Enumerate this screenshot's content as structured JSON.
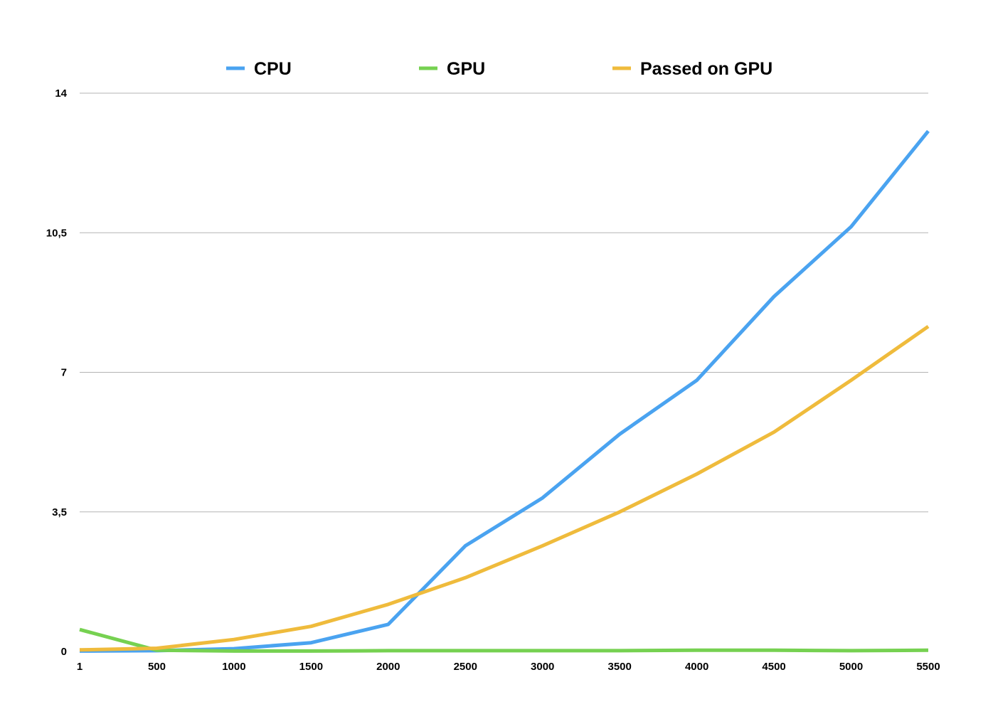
{
  "chart_data": {
    "type": "line",
    "title": "",
    "xlabel": "",
    "ylabel": "",
    "categories": [
      "1",
      "500",
      "1000",
      "1500",
      "2000",
      "2500",
      "3000",
      "3500",
      "4000",
      "4500",
      "5000",
      "5500"
    ],
    "y_ticks": [
      "0",
      "3,5",
      "7",
      "10,5",
      "14"
    ],
    "y_tick_values": [
      0,
      3.5,
      7,
      10.5,
      14
    ],
    "ylim": [
      0,
      14
    ],
    "grid": true,
    "legend_position": "top",
    "series": [
      {
        "name": "CPU",
        "color": "#4aa3f0",
        "values": [
          0.01,
          0.02,
          0.07,
          0.22,
          0.68,
          2.65,
          3.85,
          5.45,
          6.8,
          8.9,
          10.65,
          13.05
        ]
      },
      {
        "name": "GPU",
        "color": "#76d151",
        "values": [
          0.55,
          0.03,
          0.01,
          0.01,
          0.02,
          0.02,
          0.02,
          0.02,
          0.03,
          0.03,
          0.02,
          0.03
        ]
      },
      {
        "name": "Passed on GPU",
        "color": "#efbb3c",
        "values": [
          0.04,
          0.08,
          0.3,
          0.63,
          1.18,
          1.85,
          2.65,
          3.5,
          4.45,
          5.5,
          6.8,
          8.15
        ]
      }
    ]
  }
}
